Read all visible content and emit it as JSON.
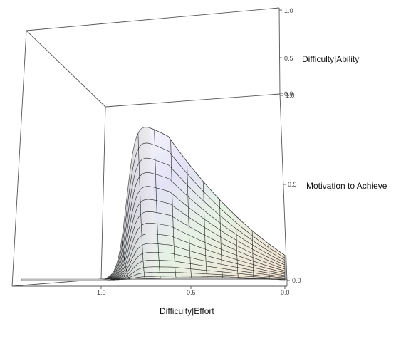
{
  "chart_data": {
    "type": "surface3d",
    "title": "",
    "axes": {
      "x": {
        "label": "Difficulty|Effort",
        "range": [
          0,
          1
        ],
        "ticks": [
          "1.0",
          "0.5",
          "0.0"
        ]
      },
      "y": {
        "label": "Difficulty|Ability",
        "range": [
          0,
          1
        ],
        "ticks": [
          "1.0",
          "0.5",
          "0.0"
        ]
      },
      "z": {
        "label": "Motivation to Achieve",
        "range": [
          0,
          1
        ],
        "ticks": [
          "0.0",
          "0.5",
          "1.0"
        ]
      }
    },
    "peak": {
      "difficulty_effort": 0.65,
      "difficulty_ability": 0.0,
      "motivation": 1.0
    },
    "mesh_lines": {
      "along_ability": 15,
      "along_effort": 11
    },
    "shading": "pastel (white, lavender, light green, peach)"
  }
}
